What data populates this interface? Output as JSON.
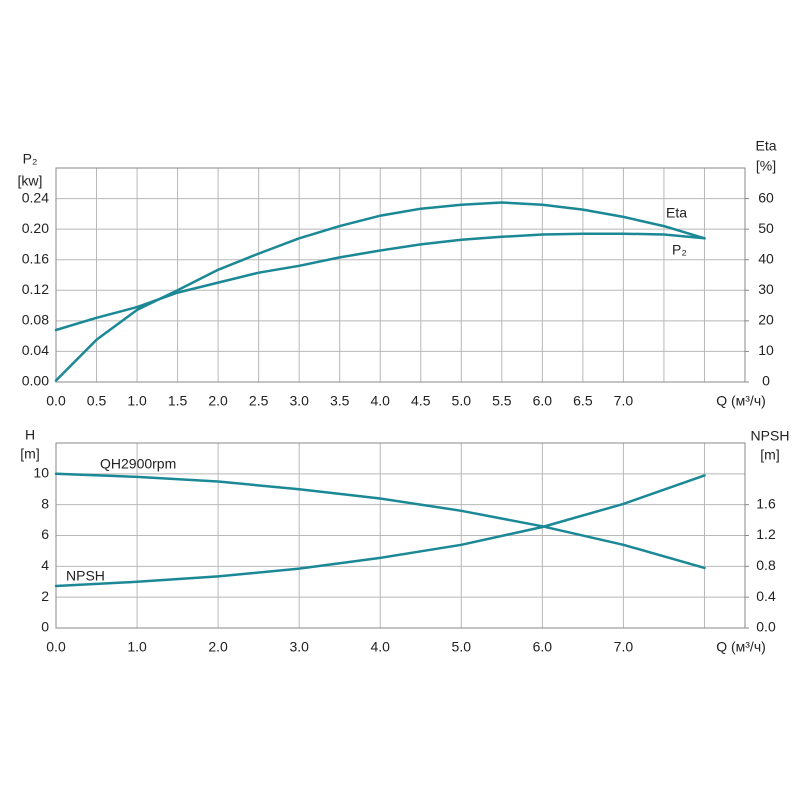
{
  "chart_data": [
    {
      "type": "line",
      "ylabel": "P₂",
      "yunit": "[kw]",
      "y2label": "Eta",
      "y2unit": "[%]",
      "xlabel": "Q (м³/ч)",
      "x": [
        0,
        0.5,
        1,
        1.5,
        2,
        2.5,
        3,
        3.5,
        4,
        4.5,
        5,
        5.5,
        6,
        6.5,
        7,
        7.5,
        8
      ],
      "xlim": [
        0,
        8.5
      ],
      "xticks": [
        {
          "value": 0,
          "label": "0.0"
        },
        0.5,
        {
          "value": 1,
          "label": "1.0"
        },
        1.5,
        {
          "value": 2,
          "label": "2.0"
        },
        2.5,
        {
          "value": 3,
          "label": "3.0"
        },
        3.5,
        {
          "value": 4,
          "label": "4.0"
        },
        4.5,
        {
          "value": 5,
          "label": "5.0"
        },
        5.5,
        {
          "value": 6,
          "label": "6.0"
        },
        6.5,
        {
          "value": 7,
          "label": "7.0"
        },
        {
          "value": 7.5,
          "label": null
        },
        {
          "value": 8,
          "label": null
        }
      ],
      "ylim": [
        0,
        0.28
      ],
      "yticks": [
        {
          "value": 0,
          "label": "0.00"
        },
        0.04,
        0.08,
        0.12,
        0.16,
        {
          "value": 0.2,
          "label": "0.20"
        },
        0.24
      ],
      "y2lim": [
        0,
        70
      ],
      "y2ticks": [
        0,
        10,
        20,
        30,
        40,
        50,
        60
      ],
      "grid": true,
      "series": [
        {
          "name": "Eta",
          "color": "#1b8896",
          "axis": "y2",
          "values": [
            0.5,
            13.8,
            23.6,
            30,
            36.7,
            42,
            47,
            51,
            54.4,
            56.7,
            58,
            58.7,
            58,
            56.4,
            54,
            51,
            47
          ]
        },
        {
          "name": "P₂",
          "color": "#1b8896",
          "values": [
            0.068,
            0.084,
            0.098,
            0.117,
            0.13,
            0.143,
            0.152,
            0.163,
            0.172,
            0.18,
            0.186,
            0.19,
            0.193,
            0.194,
            0.194,
            0.193,
            0.188
          ]
        }
      ]
    },
    {
      "type": "line",
      "ylabel": "H",
      "yunit": "[m]",
      "y2label": "NPSH",
      "y2unit": "[m]",
      "xlabel": "Q (м³/ч)",
      "x": [
        0,
        1,
        2,
        3,
        4,
        5,
        6,
        7,
        8
      ],
      "xlim": [
        0,
        8.5
      ],
      "xticks": [
        {
          "value": 0,
          "label": "0.0"
        },
        {
          "value": 1,
          "label": "1.0"
        },
        {
          "value": 2,
          "label": "2.0"
        },
        {
          "value": 3,
          "label": "3.0"
        },
        {
          "value": 4,
          "label": "4.0"
        },
        {
          "value": 5,
          "label": "5.0"
        },
        {
          "value": 6,
          "label": "6.0"
        },
        {
          "value": 7,
          "label": "7.0"
        },
        {
          "value": 8,
          "label": null
        }
      ],
      "ylim": [
        0,
        12
      ],
      "yticks": [
        0,
        2,
        4,
        6,
        8,
        10
      ],
      "y2lim": [
        0,
        2.4
      ],
      "y2ticks": [
        {
          "value": 0,
          "label": "0.0"
        },
        0.4,
        0.8,
        1.2,
        1.6
      ],
      "grid": true,
      "series": [
        {
          "name": "QH2900rpm",
          "color": "#1b8896",
          "values": [
            10.0,
            9.8,
            9.5,
            9.0,
            8.4,
            7.6,
            6.6,
            5.4,
            3.9
          ]
        },
        {
          "name": "NPSH",
          "color": "#1b8896",
          "axis": "y2",
          "values": [
            0.545,
            0.6,
            0.67,
            0.77,
            0.91,
            1.08,
            1.31,
            1.61,
            1.98
          ]
        }
      ]
    }
  ]
}
